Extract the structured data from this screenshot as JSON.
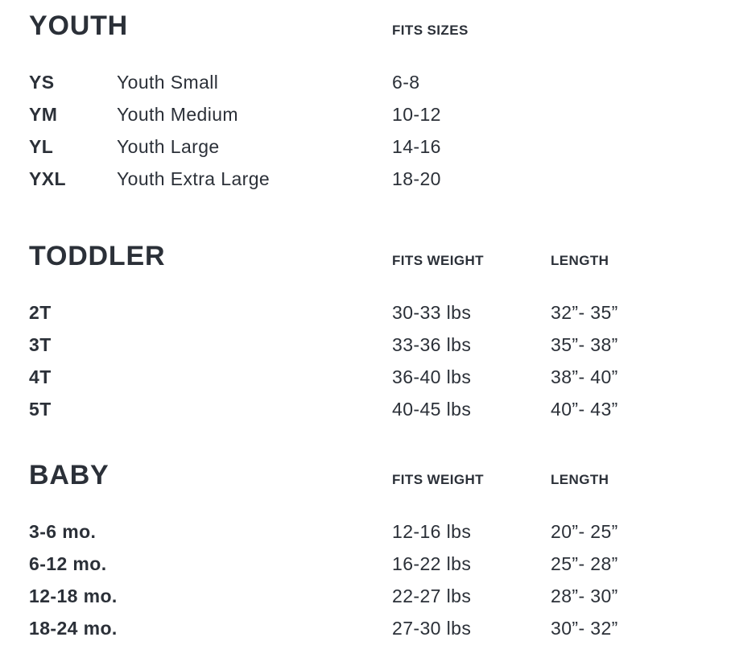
{
  "theme": {
    "text_color": "#2b3038",
    "background_color": "#ffffff"
  },
  "sections": [
    {
      "title": "YOUTH",
      "columns": {
        "fits": "FITS SIZES"
      },
      "rows": [
        {
          "code": "YS",
          "name": "Youth Small",
          "fits": "6-8"
        },
        {
          "code": "YM",
          "name": "Youth Medium",
          "fits": "10-12"
        },
        {
          "code": "YL",
          "name": "Youth Large",
          "fits": "14-16"
        },
        {
          "code": "YXL",
          "name": "Youth Extra Large",
          "fits": "18-20"
        }
      ]
    },
    {
      "title": "TODDLER",
      "columns": {
        "fits": "FITS WEIGHT",
        "length": "LENGTH"
      },
      "rows": [
        {
          "code": "2T",
          "fits": "30-33 lbs",
          "length": "32”- 35”"
        },
        {
          "code": "3T",
          "fits": "33-36 lbs",
          "length": "35”- 38”"
        },
        {
          "code": "4T",
          "fits": "36-40 lbs",
          "length": "38”- 40”"
        },
        {
          "code": "5T",
          "fits": "40-45 lbs",
          "length": "40”- 43”"
        }
      ]
    },
    {
      "title": "BABY",
      "columns": {
        "fits": "FITS WEIGHT",
        "length": "LENGTH"
      },
      "rows": [
        {
          "code": "3-6 mo.",
          "fits": "12-16 lbs",
          "length": "20”- 25”"
        },
        {
          "code": "6-12 mo.",
          "fits": "16-22 lbs",
          "length": "25”- 28”"
        },
        {
          "code": "12-18 mo.",
          "fits": "22-27 lbs",
          "length": "28”- 30”"
        },
        {
          "code": "18-24 mo.",
          "fits": "27-30 lbs",
          "length": "30”- 32”"
        }
      ]
    }
  ]
}
